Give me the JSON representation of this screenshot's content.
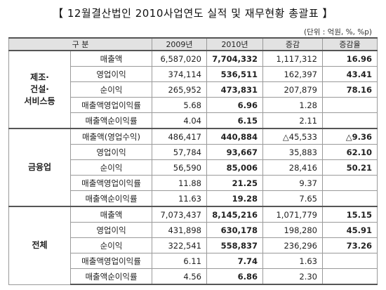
{
  "title": "【 12월결산법인 2010사업연도 실적 및 재무현황 총괄표 】",
  "unit": "(단위 : 억원, %, %p)",
  "header": {
    "category": "구    분",
    "y2009": "2009년",
    "y2010": "2010년",
    "change": "증감",
    "rate": "증감율"
  },
  "groups": [
    {
      "name": "제조·\n건설·\n서비스등",
      "rows": [
        {
          "metric": "매출액",
          "y2009": "6,587,020",
          "y2010": "7,704,332",
          "change": "1,117,312",
          "rate": "16.96"
        },
        {
          "metric": "영업이익",
          "y2009": "374,114",
          "y2010": "536,511",
          "change": "162,397",
          "rate": "43.41"
        },
        {
          "metric": "순이익",
          "y2009": "265,952",
          "y2010": "473,831",
          "change": "207,879",
          "rate": "78.16"
        },
        {
          "metric": "매출액영업이익률",
          "y2009": "5.68",
          "y2010": "6.96",
          "change": "1.28",
          "rate": ""
        },
        {
          "metric": "매출액순이익률",
          "y2009": "4.04",
          "y2010": "6.15",
          "change": "2.11",
          "rate": ""
        }
      ]
    },
    {
      "name": "금융업",
      "rows": [
        {
          "metric": "매출액(영업수익)",
          "y2009": "486,417",
          "y2010": "440,884",
          "change": "△45,533",
          "rate": "△9.36"
        },
        {
          "metric": "영업이익",
          "y2009": "57,784",
          "y2010": "93,667",
          "change": "35,883",
          "rate": "62.10"
        },
        {
          "metric": "순이익",
          "y2009": "56,590",
          "y2010": "85,006",
          "change": "28,416",
          "rate": "50.21"
        },
        {
          "metric": "매출액영업이익률",
          "y2009": "11.88",
          "y2010": "21.25",
          "change": "9.37",
          "rate": ""
        },
        {
          "metric": "매출액순이익률",
          "y2009": "11.63",
          "y2010": "19.28",
          "change": "7.65",
          "rate": ""
        }
      ]
    },
    {
      "name": "전체",
      "rows": [
        {
          "metric": "매출액",
          "y2009": "7,073,437",
          "y2010": "8,145,216",
          "change": "1,071,779",
          "rate": "15.15"
        },
        {
          "metric": "영업이익",
          "y2009": "431,898",
          "y2010": "630,178",
          "change": "198,280",
          "rate": "45.91"
        },
        {
          "metric": "순이익",
          "y2009": "322,541",
          "y2010": "558,837",
          "change": "236,296",
          "rate": "73.26"
        },
        {
          "metric": "매출액영업이익률",
          "y2009": "6.11",
          "y2010": "7.74",
          "change": "1.63",
          "rate": ""
        },
        {
          "metric": "매출액순이익률",
          "y2009": "4.56",
          "y2010": "6.86",
          "change": "2.30",
          "rate": ""
        }
      ]
    }
  ]
}
